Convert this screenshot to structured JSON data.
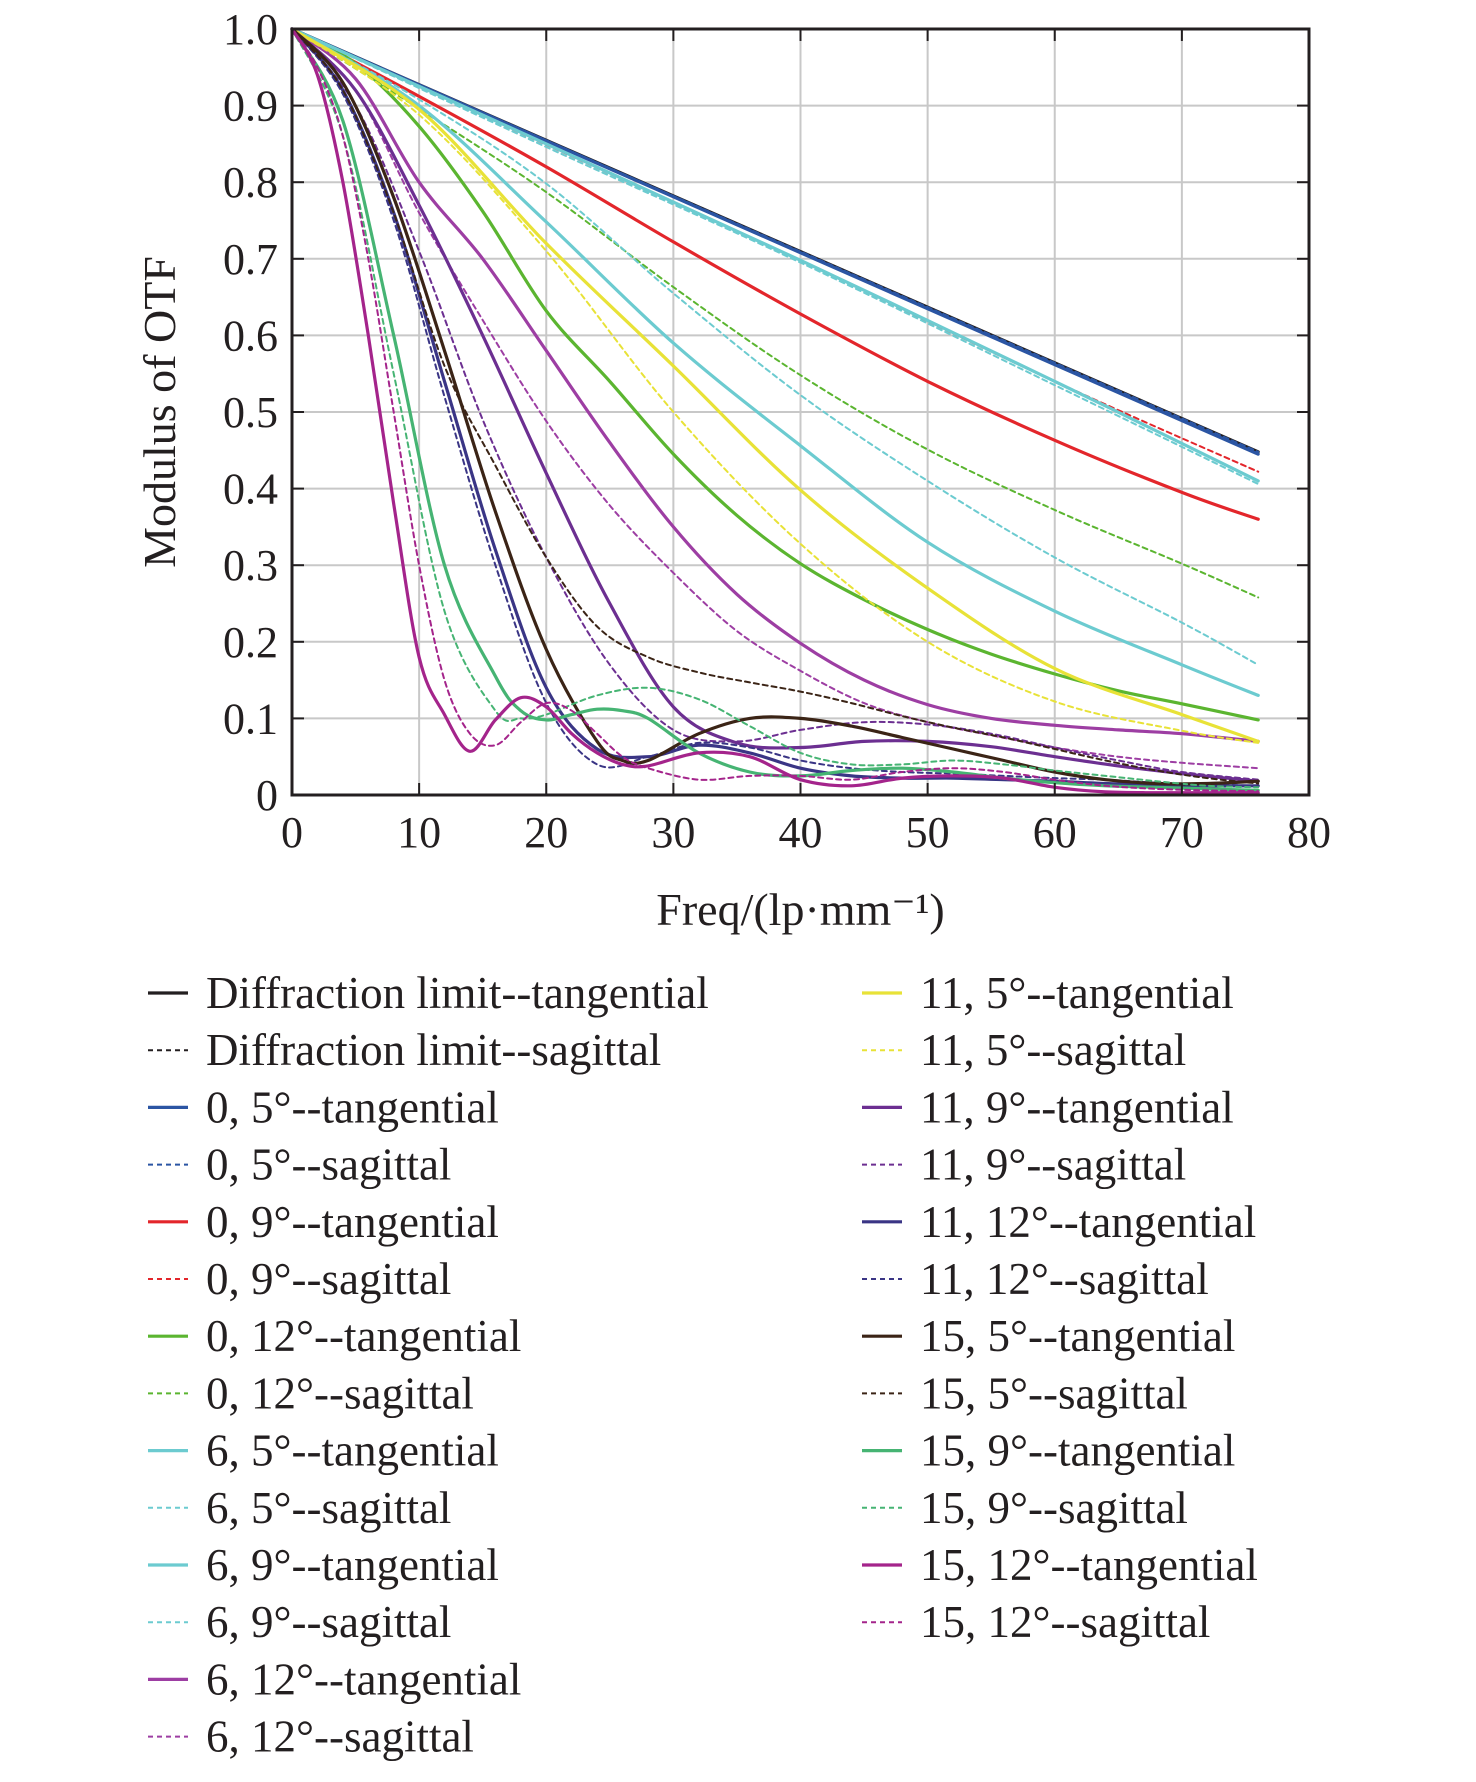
{
  "chart_data": {
    "type": "line",
    "title": "",
    "xlabel": "Freq/(lp·mm⁻¹)",
    "ylabel": "Modulus of OTF",
    "xlim": [
      0,
      80
    ],
    "ylim": [
      0,
      1.0
    ],
    "xticks": [
      "0",
      "10",
      "20",
      "30",
      "40",
      "50",
      "60",
      "70",
      "80"
    ],
    "yticks": [
      "0",
      "0.1",
      "0.2",
      "0.3",
      "0.4",
      "0.5",
      "0.6",
      "0.7",
      "0.8",
      "0.9",
      "1.0"
    ],
    "grid": true,
    "legend_position": "below",
    "series": [
      {
        "name": "Diffraction limit--tangential",
        "color": "#231f20",
        "dash": false,
        "x": [
          0,
          76
        ],
        "y": [
          1.0,
          0.448
        ]
      },
      {
        "name": "Diffraction limit--sagittal",
        "color": "#231f20",
        "dash": true,
        "x": [
          0,
          76
        ],
        "y": [
          1.0,
          0.448
        ]
      },
      {
        "name": "0, 5°--tangential",
        "color": "#2b55a3",
        "dash": false,
        "x": [
          0,
          76
        ],
        "y": [
          1.0,
          0.445
        ]
      },
      {
        "name": "0, 5°--sagittal",
        "color": "#2b55a3",
        "dash": true,
        "x": [
          0,
          76
        ],
        "y": [
          1.0,
          0.448
        ]
      },
      {
        "name": "0, 9°--tangential",
        "color": "#e3262b",
        "dash": false,
        "x": [
          0,
          10,
          20,
          30,
          40,
          50,
          60,
          70,
          76
        ],
        "y": [
          1.0,
          0.912,
          0.82,
          0.722,
          0.628,
          0.54,
          0.463,
          0.395,
          0.36
        ]
      },
      {
        "name": "0, 9°--sagittal",
        "color": "#e3262b",
        "dash": true,
        "x": [
          0,
          20,
          40,
          60,
          76
        ],
        "y": [
          1.0,
          0.849,
          0.697,
          0.54,
          0.422
        ]
      },
      {
        "name": "0, 12°--tangential",
        "color": "#5bb530",
        "dash": false,
        "x": [
          0,
          5,
          10,
          15,
          20,
          25,
          30,
          35,
          40,
          45,
          50,
          55,
          60,
          65,
          70,
          76
        ],
        "y": [
          1.0,
          0.955,
          0.873,
          0.762,
          0.632,
          0.54,
          0.445,
          0.365,
          0.302,
          0.255,
          0.216,
          0.184,
          0.158,
          0.136,
          0.119,
          0.098
        ]
      },
      {
        "name": "0, 12°--sagittal",
        "color": "#5bb530",
        "dash": true,
        "x": [
          0,
          10,
          20,
          30,
          40,
          50,
          60,
          70,
          76
        ],
        "y": [
          1.0,
          0.896,
          0.787,
          0.663,
          0.548,
          0.451,
          0.372,
          0.302,
          0.258
        ]
      },
      {
        "name": "6, 5°--tangential",
        "color": "#6ccbd0",
        "dash": false,
        "x": [
          0,
          20,
          40,
          60,
          76
        ],
        "y": [
          1.0,
          0.85,
          0.698,
          0.54,
          0.41
        ]
      },
      {
        "name": "6, 5°--sagittal",
        "color": "#6ccbd0",
        "dash": true,
        "x": [
          0,
          20,
          40,
          60,
          76
        ],
        "y": [
          1.0,
          0.846,
          0.695,
          0.535,
          0.406
        ]
      },
      {
        "name": "6, 9°--tangential",
        "color": "#6ccbd0",
        "dash": false,
        "x": [
          0,
          10,
          20,
          30,
          40,
          50,
          60,
          70,
          76
        ],
        "y": [
          1.0,
          0.9,
          0.748,
          0.59,
          0.456,
          0.33,
          0.24,
          0.17,
          0.13
        ]
      },
      {
        "name": "6, 9°--sagittal",
        "color": "#6ccbd0",
        "dash": true,
        "x": [
          0,
          10,
          20,
          30,
          40,
          50,
          60,
          70,
          76
        ],
        "y": [
          1.0,
          0.908,
          0.798,
          0.655,
          0.522,
          0.41,
          0.31,
          0.225,
          0.17
        ]
      },
      {
        "name": "6, 12°--tangential",
        "color": "#9d3ea3",
        "dash": false,
        "x": [
          0,
          5,
          10,
          15,
          20,
          25,
          30,
          35,
          40,
          45,
          50,
          55,
          60,
          65,
          70,
          76
        ],
        "y": [
          1.0,
          0.935,
          0.8,
          0.7,
          0.58,
          0.46,
          0.35,
          0.262,
          0.198,
          0.15,
          0.118,
          0.1,
          0.091,
          0.085,
          0.08,
          0.07
        ]
      },
      {
        "name": "6, 12°--sagittal",
        "color": "#9d3ea3",
        "dash": true,
        "x": [
          0,
          5,
          10,
          15,
          20,
          25,
          30,
          35,
          40,
          45,
          50,
          55,
          60,
          65,
          70,
          76
        ],
        "y": [
          1.0,
          0.92,
          0.76,
          0.62,
          0.488,
          0.378,
          0.29,
          0.214,
          0.162,
          0.12,
          0.095,
          0.078,
          0.062,
          0.05,
          0.042,
          0.035
        ]
      },
      {
        "name": "11, 5°--tangential",
        "color": "#e8e237",
        "dash": false,
        "x": [
          0,
          10,
          20,
          30,
          40,
          50,
          60,
          70,
          76
        ],
        "y": [
          1.0,
          0.895,
          0.72,
          0.56,
          0.398,
          0.27,
          0.165,
          0.105,
          0.07
        ]
      },
      {
        "name": "11, 5°--sagittal",
        "color": "#e8e237",
        "dash": true,
        "x": [
          0,
          10,
          20,
          30,
          40,
          50,
          60,
          70,
          76
        ],
        "y": [
          1.0,
          0.888,
          0.71,
          0.5,
          0.328,
          0.2,
          0.122,
          0.084,
          0.068
        ]
      },
      {
        "name": "11, 9°--tangential",
        "color": "#6c2f91",
        "dash": false,
        "x": [
          0,
          5,
          10,
          15,
          20,
          25,
          30,
          35,
          40,
          45,
          50,
          55,
          60,
          65,
          70,
          76
        ],
        "y": [
          1.0,
          0.92,
          0.77,
          0.6,
          0.42,
          0.25,
          0.115,
          0.068,
          0.062,
          0.07,
          0.07,
          0.063,
          0.05,
          0.038,
          0.028,
          0.018
        ]
      },
      {
        "name": "11, 9°--sagittal",
        "color": "#6c2f91",
        "dash": true,
        "x": [
          0,
          5,
          10,
          15,
          20,
          25,
          30,
          35,
          40,
          45,
          50,
          55,
          60,
          65,
          70,
          76
        ],
        "y": [
          1.0,
          0.9,
          0.71,
          0.49,
          0.31,
          0.17,
          0.085,
          0.07,
          0.085,
          0.095,
          0.092,
          0.08,
          0.062,
          0.045,
          0.03,
          0.02
        ]
      },
      {
        "name": "11, 12°--tangential",
        "color": "#3a3585",
        "dash": false,
        "x": [
          0,
          4,
          8,
          12,
          16,
          20,
          24,
          28,
          32,
          36,
          40,
          44,
          48,
          52,
          56,
          60,
          64,
          68,
          72,
          76
        ],
        "y": [
          1.0,
          0.92,
          0.76,
          0.54,
          0.32,
          0.14,
          0.06,
          0.05,
          0.065,
          0.055,
          0.035,
          0.025,
          0.022,
          0.022,
          0.02,
          0.018,
          0.015,
          0.013,
          0.012,
          0.012
        ]
      },
      {
        "name": "11, 12°--sagittal",
        "color": "#3a3585",
        "dash": true,
        "x": [
          0,
          4,
          8,
          12,
          16,
          20,
          24,
          28,
          32,
          36,
          40,
          44,
          48,
          52,
          56,
          60,
          64,
          68,
          72,
          76
        ],
        "y": [
          1.0,
          0.915,
          0.75,
          0.52,
          0.3,
          0.12,
          0.04,
          0.05,
          0.068,
          0.062,
          0.045,
          0.035,
          0.03,
          0.028,
          0.025,
          0.022,
          0.02,
          0.016,
          0.014,
          0.012
        ]
      },
      {
        "name": "15, 5°--tangential",
        "color": "#3b2416",
        "dash": false,
        "x": [
          0,
          4,
          8,
          12,
          16,
          20,
          24,
          26,
          28,
          32,
          36,
          40,
          44,
          48,
          52,
          56,
          60,
          64,
          68,
          72,
          76
        ],
        "y": [
          1.0,
          0.93,
          0.78,
          0.58,
          0.37,
          0.19,
          0.07,
          0.045,
          0.045,
          0.08,
          0.1,
          0.1,
          0.09,
          0.075,
          0.06,
          0.045,
          0.03,
          0.02,
          0.015,
          0.015,
          0.018
        ]
      },
      {
        "name": "15, 5°--sagittal",
        "color": "#3b2416",
        "dash": true,
        "x": [
          0,
          4,
          8,
          12,
          16,
          20,
          24,
          28,
          32,
          36,
          40,
          44,
          48,
          52,
          56,
          60,
          64,
          68,
          72,
          76
        ],
        "y": [
          1.0,
          0.92,
          0.76,
          0.56,
          0.43,
          0.31,
          0.22,
          0.18,
          0.16,
          0.147,
          0.135,
          0.12,
          0.103,
          0.088,
          0.075,
          0.06,
          0.045,
          0.032,
          0.022,
          0.015
        ]
      },
      {
        "name": "15, 9°--tangential",
        "color": "#46b473",
        "dash": false,
        "x": [
          0,
          4,
          8,
          12,
          16,
          18,
          20,
          22,
          24,
          26,
          28,
          32,
          36,
          40,
          44,
          48,
          52,
          56,
          60,
          64,
          68,
          72,
          76
        ],
        "y": [
          1.0,
          0.88,
          0.6,
          0.3,
          0.155,
          0.11,
          0.098,
          0.105,
          0.112,
          0.11,
          0.1,
          0.055,
          0.03,
          0.025,
          0.032,
          0.035,
          0.03,
          0.022,
          0.016,
          0.012,
          0.01,
          0.008,
          0.006
        ]
      },
      {
        "name": "15, 9°--sagittal",
        "color": "#46b473",
        "dash": true,
        "x": [
          0,
          4,
          8,
          12,
          16,
          18,
          20,
          24,
          28,
          32,
          36,
          40,
          44,
          48,
          52,
          56,
          60,
          64,
          68,
          72,
          76
        ],
        "y": [
          1.0,
          0.86,
          0.55,
          0.24,
          0.11,
          0.1,
          0.105,
          0.13,
          0.14,
          0.125,
          0.09,
          0.055,
          0.04,
          0.04,
          0.045,
          0.04,
          0.032,
          0.025,
          0.018,
          0.012,
          0.01
        ]
      },
      {
        "name": "15, 12°--tangential",
        "color": "#a4248b",
        "dash": false,
        "x": [
          0,
          2,
          4,
          6,
          8,
          10,
          12,
          14,
          16,
          18,
          20,
          22,
          24,
          26,
          28,
          32,
          36,
          40,
          44,
          48,
          52,
          56,
          60,
          64,
          68,
          72,
          76
        ],
        "y": [
          1.0,
          0.94,
          0.8,
          0.6,
          0.38,
          0.18,
          0.105,
          0.057,
          0.098,
          0.127,
          0.115,
          0.08,
          0.055,
          0.04,
          0.038,
          0.055,
          0.05,
          0.02,
          0.012,
          0.022,
          0.025,
          0.022,
          0.01,
          0.004,
          0.003,
          0.003,
          0.003
        ]
      },
      {
        "name": "15, 12°--sagittal",
        "color": "#a4248b",
        "dash": true,
        "x": [
          0,
          2,
          4,
          6,
          8,
          10,
          12,
          14,
          16,
          18,
          20,
          22,
          24,
          26,
          28,
          32,
          36,
          40,
          44,
          48,
          52,
          56,
          60,
          64,
          68,
          72,
          76
        ],
        "y": [
          1.0,
          0.95,
          0.86,
          0.7,
          0.5,
          0.3,
          0.15,
          0.08,
          0.065,
          0.095,
          0.12,
          0.11,
          0.08,
          0.05,
          0.035,
          0.02,
          0.025,
          0.025,
          0.02,
          0.03,
          0.035,
          0.03,
          0.02,
          0.012,
          0.008,
          0.006,
          0.005
        ]
      }
    ]
  }
}
